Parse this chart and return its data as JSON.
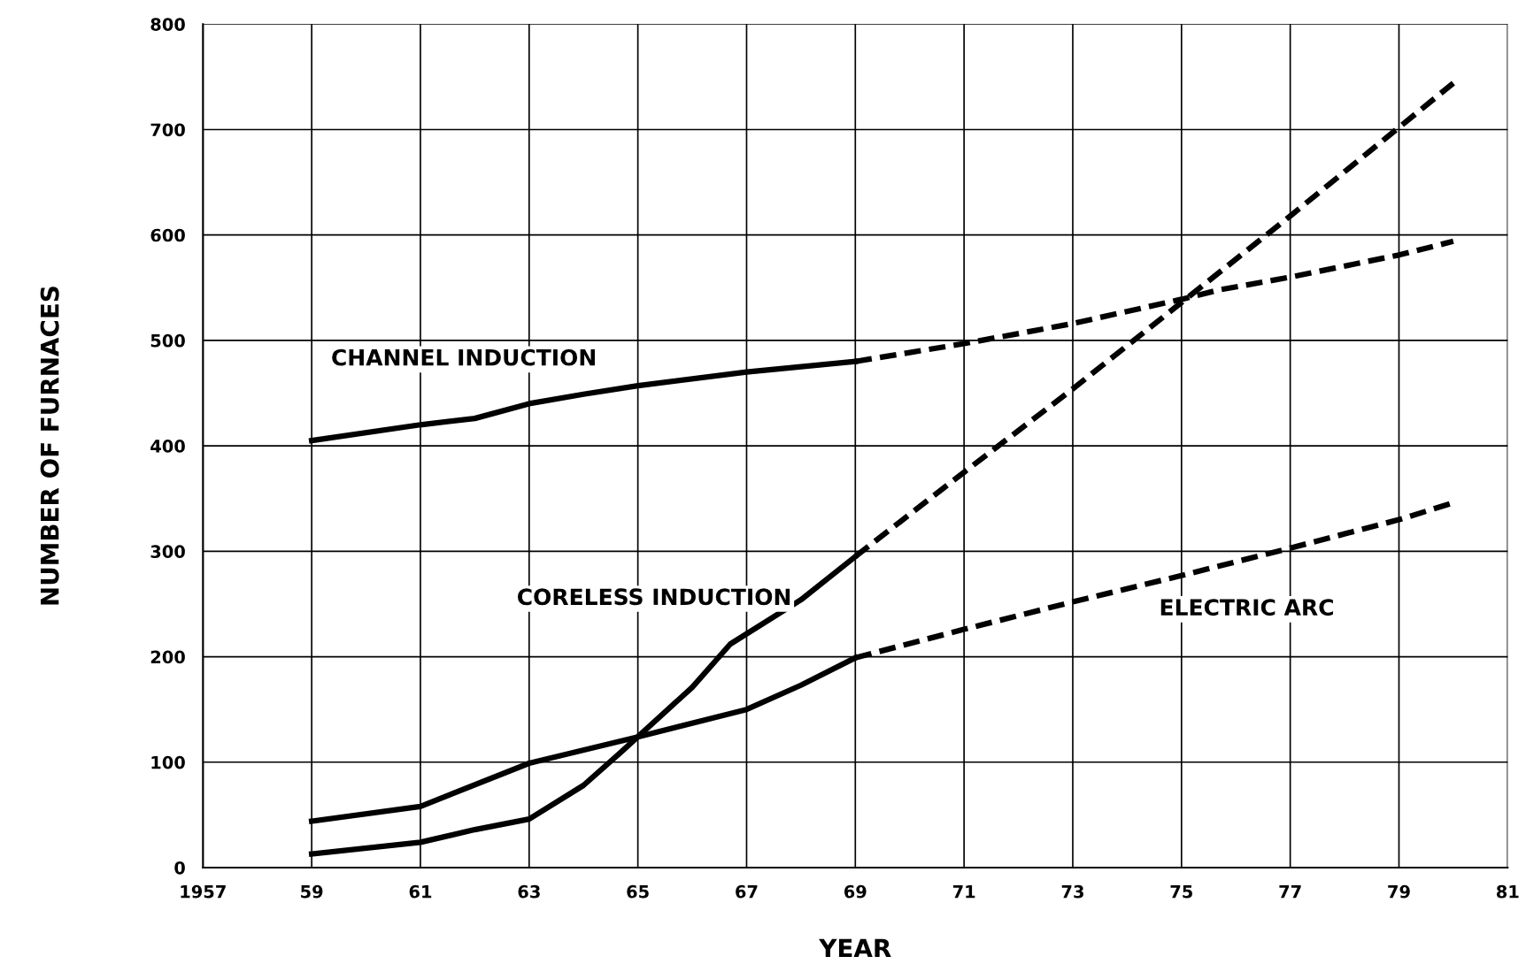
{
  "chart_data": {
    "type": "line",
    "xlabel": "YEAR",
    "ylabel": "NUMBER OF FURNACES",
    "xlim": [
      1957,
      1981
    ],
    "xticks": [
      {
        "value": 1957,
        "label": "1957"
      },
      {
        "value": 1959,
        "label": "59"
      },
      {
        "value": 1961,
        "label": "61"
      },
      {
        "value": 1963,
        "label": "63"
      },
      {
        "value": 1965,
        "label": "65"
      },
      {
        "value": 1967,
        "label": "67"
      },
      {
        "value": 1969,
        "label": "69"
      },
      {
        "value": 1971,
        "label": "71"
      },
      {
        "value": 1973,
        "label": "73"
      },
      {
        "value": 1975,
        "label": "75"
      },
      {
        "value": 1977,
        "label": "77"
      },
      {
        "value": 1979,
        "label": "79"
      },
      {
        "value": 1981,
        "label": "81"
      }
    ],
    "ylim": [
      0,
      800
    ],
    "yticks": [
      0,
      100,
      200,
      300,
      400,
      500,
      600,
      700,
      800
    ],
    "grid": true,
    "legend": false,
    "marker": "none",
    "series": [
      {
        "name": "CHANNEL INDUCTION",
        "color": "#000000",
        "line_style": "solid",
        "x": [
          1959,
          1961,
          1962,
          1963,
          1964,
          1965,
          1967,
          1969
        ],
        "values": [
          405,
          420,
          426,
          440,
          449,
          457,
          470,
          480
        ]
      },
      {
        "color": "#000000",
        "line_style": "dashed",
        "x": [
          1969,
          1971,
          1973,
          1975,
          1975.7,
          1977,
          1979,
          1980
        ],
        "values": [
          480,
          497,
          516,
          539,
          548,
          560,
          581,
          594
        ]
      },
      {
        "name": "CORELESS INDUCTION",
        "color": "#000000",
        "line_style": "solid",
        "x": [
          1959,
          1961,
          1962,
          1963,
          1964,
          1964.7,
          1966,
          1966.7,
          1968,
          1969
        ],
        "values": [
          13,
          24,
          36,
          46,
          78,
          110,
          171,
          212,
          254,
          295
        ]
      },
      {
        "color": "#000000",
        "line_style": "dashed",
        "x": [
          1969,
          1971,
          1973,
          1975,
          1977,
          1979,
          1980
        ],
        "values": [
          295,
          375,
          454,
          536,
          618,
          702,
          744
        ]
      },
      {
        "color": "#000000",
        "line_style": "solid",
        "x": [
          1959,
          1961,
          1963,
          1965,
          1967,
          1968,
          1969
        ],
        "values": [
          44,
          58,
          99,
          124,
          150,
          173,
          199
        ]
      },
      {
        "name": "ELECTRIC ARC",
        "color": "#000000",
        "line_style": "dashed",
        "x": [
          1969,
          1971,
          1973,
          1975,
          1977,
          1979,
          1980
        ],
        "values": [
          199,
          226,
          252,
          277,
          303,
          330,
          346
        ]
      }
    ]
  }
}
